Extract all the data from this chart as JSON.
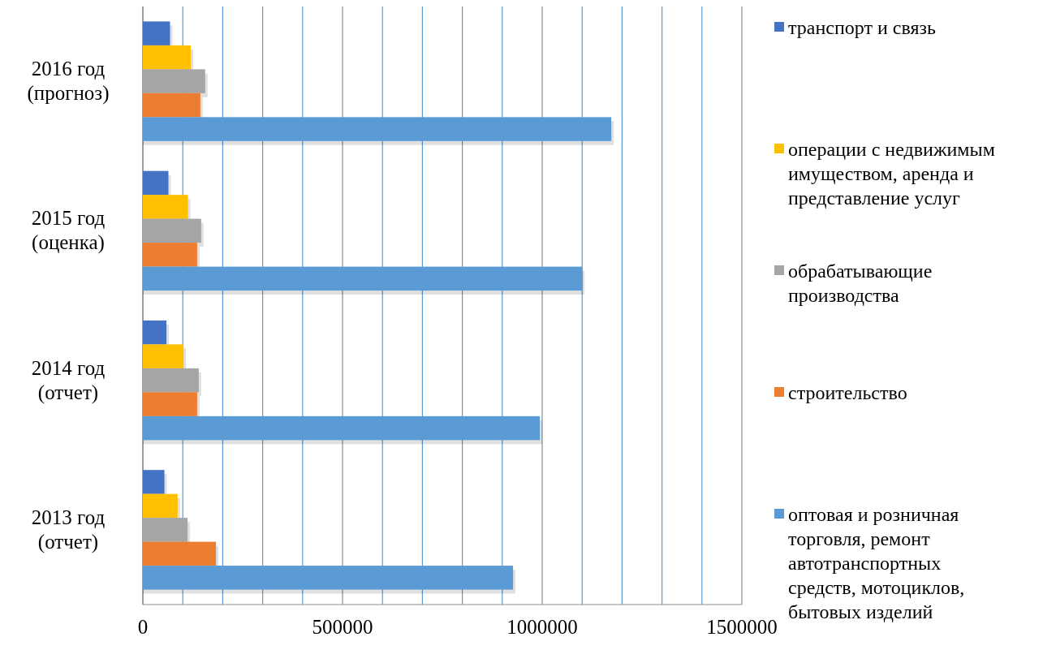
{
  "chart_data": {
    "type": "bar",
    "orientation": "horizontal",
    "categories": [
      "2016 год (прогноз)",
      "2015 год (оценка)",
      "2014 год (отчет)",
      "2013 год (отчет)"
    ],
    "series": [
      {
        "name": "транспорт и связь",
        "color": "#4472c4",
        "values": [
          68000,
          64000,
          59000,
          54000
        ]
      },
      {
        "name": "операции с недвижимым имуществом, аренда и представление услуг",
        "color": "#ffc000",
        "values": [
          120000,
          113000,
          102000,
          87000
        ]
      },
      {
        "name": "обрабатывающие производства",
        "color": "#a5a5a5",
        "values": [
          156000,
          146000,
          140000,
          112000
        ]
      },
      {
        "name": "строительство",
        "color": "#ed7d31",
        "values": [
          144000,
          136000,
          136000,
          183000
        ]
      },
      {
        "name": "оптовая и розничная торговля, ремонт автотранспортных средств, мотоциклов, бытовых изделий",
        "color": "#5b9bd5",
        "values": [
          1173000,
          1100000,
          994000,
          927000
        ]
      }
    ],
    "xlim": [
      0,
      1500000
    ],
    "xticks": [
      0,
      {
        "value": 100000,
        "label": null
      },
      {
        "value": 200000,
        "label": null
      },
      {
        "value": 300000,
        "label": null
      },
      {
        "value": 400000,
        "label": null
      },
      500000,
      {
        "value": 600000,
        "label": null
      },
      {
        "value": 700000,
        "label": null
      },
      {
        "value": 800000,
        "label": null
      },
      {
        "value": 900000,
        "label": null
      },
      1000000,
      {
        "value": 1100000,
        "label": null
      },
      {
        "value": 1200000,
        "label": null
      },
      {
        "value": 1300000,
        "label": null
      },
      {
        "value": 1400000,
        "label": null
      },
      1500000
    ],
    "grid": "x",
    "legend": "right"
  }
}
